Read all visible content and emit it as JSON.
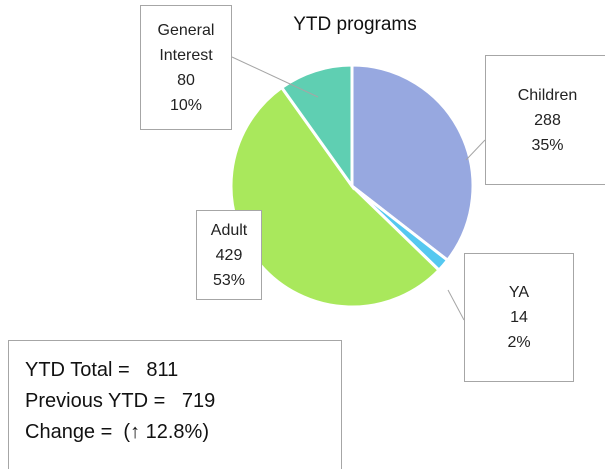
{
  "chart_data": {
    "type": "pie",
    "title": "YTD programs",
    "categories": [
      "Children",
      "YA",
      "Adult",
      "General Interest"
    ],
    "values": [
      288,
      14,
      429,
      80
    ],
    "percent_labels": [
      "35%",
      "2%",
      "53%",
      "10%"
    ],
    "colors": [
      "#97a8e0",
      "#55c8f0",
      "#a9e85c",
      "#5fcfb2"
    ],
    "summary": [
      "YTD Total =   811",
      "Previous YTD =   719",
      "Change =  (↑ 12.8%)"
    ]
  }
}
